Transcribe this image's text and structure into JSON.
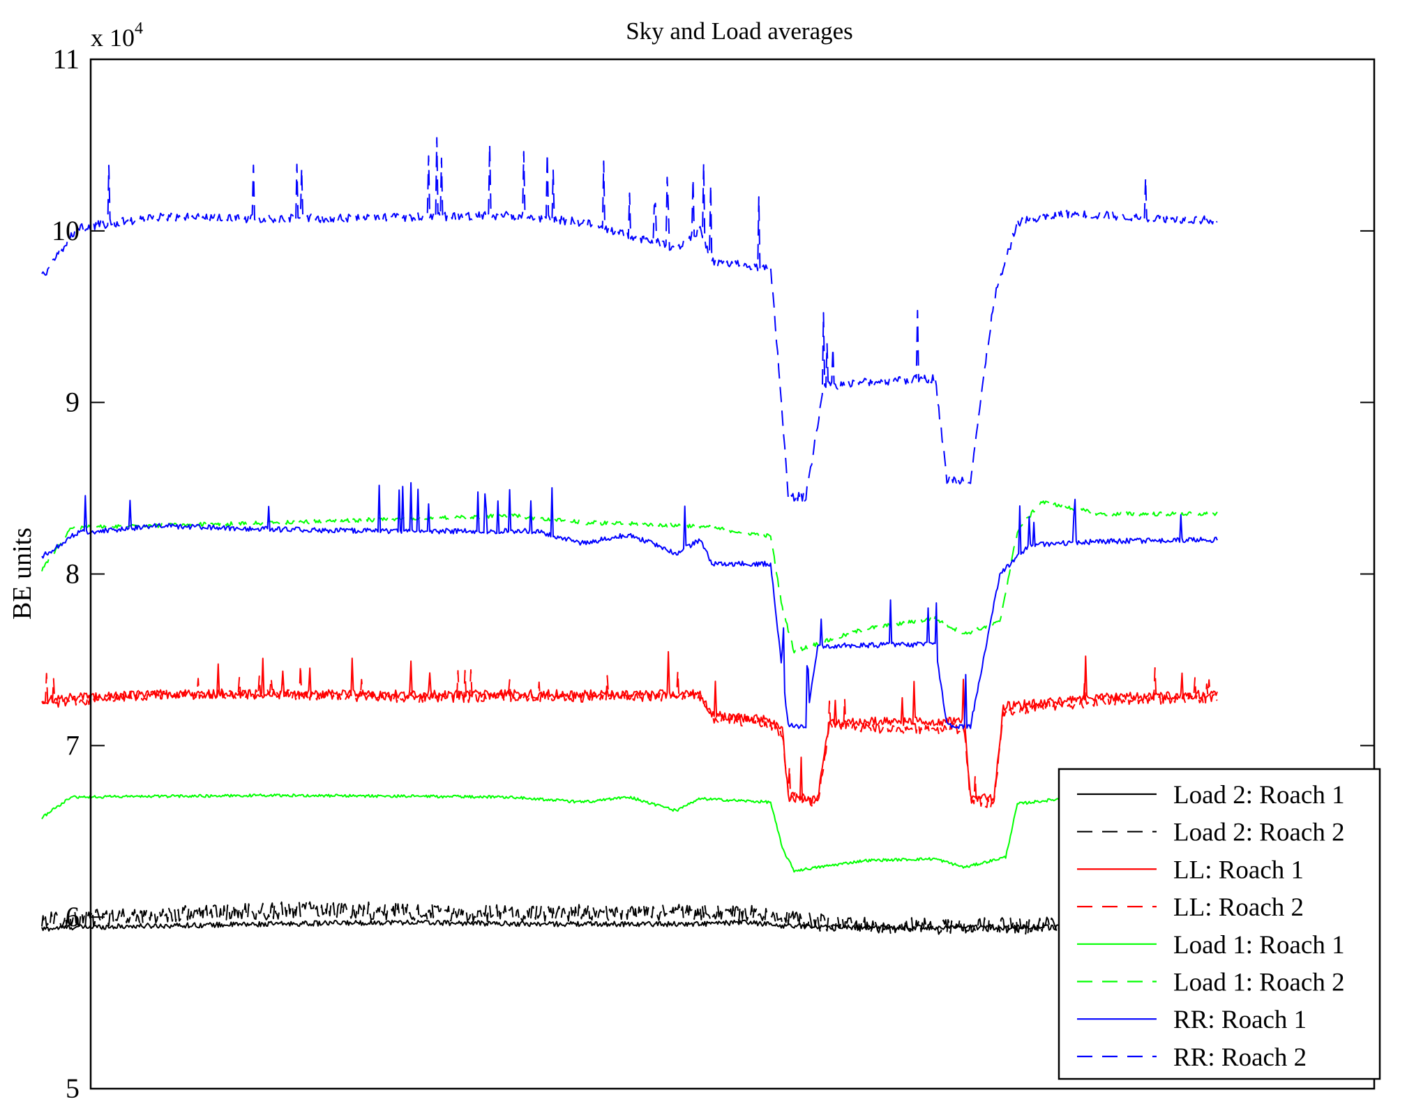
{
  "chart_data": {
    "type": "line",
    "title": "Sky and Load averages",
    "xlabel": "",
    "ylabel": "BE units",
    "y_multiplier": "x 10",
    "y_multiplier_exponent": "4",
    "ylim": [
      50000,
      110000
    ],
    "xlim": [
      0,
      1000
    ],
    "y_ticks": [
      50000,
      60000,
      70000,
      80000,
      90000,
      100000,
      110000
    ],
    "y_tick_labels": [
      "5",
      "6",
      "7",
      "8",
      "9",
      "10",
      "11"
    ],
    "x_tick_labels": [],
    "grid": false,
    "legend_position": "bottom-right",
    "series": [
      {
        "name": "Load 2: Roach 1",
        "color": "#000000",
        "dash": "solid",
        "noise": 150,
        "spike": 0,
        "points": [
          [
            0,
            59300
          ],
          [
            20,
            59400
          ],
          [
            100,
            59500
          ],
          [
            200,
            59600
          ],
          [
            300,
            59700
          ],
          [
            420,
            59600
          ],
          [
            560,
            59600
          ],
          [
            600,
            59700
          ],
          [
            630,
            59500
          ],
          [
            700,
            59400
          ],
          [
            800,
            59400
          ],
          [
            900,
            59400
          ],
          [
            1000,
            59400
          ]
        ]
      },
      {
        "name": "Load 2: Roach 2",
        "color": "#000000",
        "dash": "dashed",
        "noise": 500,
        "spike": 0,
        "points": [
          [
            0,
            59800
          ],
          [
            60,
            60000
          ],
          [
            120,
            60200
          ],
          [
            180,
            60300
          ],
          [
            240,
            60500
          ],
          [
            300,
            60300
          ],
          [
            400,
            60200
          ],
          [
            500,
            60300
          ],
          [
            560,
            60300
          ],
          [
            600,
            60200
          ],
          [
            630,
            60000
          ],
          [
            660,
            59700
          ],
          [
            700,
            59500
          ],
          [
            800,
            59500
          ],
          [
            900,
            59500
          ],
          [
            1000,
            59500
          ]
        ]
      },
      {
        "name": "LL: Roach 1",
        "color": "#ff0000",
        "dash": "solid",
        "noise": 250,
        "spike": 2000,
        "points": [
          [
            0,
            72600
          ],
          [
            25,
            72800
          ],
          [
            100,
            73000
          ],
          [
            200,
            73000
          ],
          [
            300,
            73000
          ],
          [
            400,
            73000
          ],
          [
            560,
            73000
          ],
          [
            570,
            71800
          ],
          [
            615,
            71500
          ],
          [
            620,
            71300
          ],
          [
            630,
            71000
          ],
          [
            635,
            67000
          ],
          [
            660,
            66800
          ],
          [
            670,
            71400
          ],
          [
            700,
            71400
          ],
          [
            760,
            71400
          ],
          [
            785,
            71400
          ],
          [
            790,
            67000
          ],
          [
            810,
            66900
          ],
          [
            818,
            72300
          ],
          [
            900,
            72800
          ],
          [
            1000,
            73000
          ]
        ]
      },
      {
        "name": "LL: Roach 2",
        "color": "#ff0000",
        "dash": "dashed",
        "noise": 300,
        "spike": 1500,
        "points": [
          [
            0,
            72400
          ],
          [
            25,
            72600
          ],
          [
            100,
            73000
          ],
          [
            200,
            73000
          ],
          [
            300,
            72800
          ],
          [
            400,
            72800
          ],
          [
            560,
            72900
          ],
          [
            570,
            71600
          ],
          [
            615,
            71300
          ],
          [
            620,
            71100
          ],
          [
            630,
            70800
          ],
          [
            635,
            67200
          ],
          [
            660,
            66600
          ],
          [
            670,
            71200
          ],
          [
            700,
            71000
          ],
          [
            760,
            71000
          ],
          [
            785,
            71000
          ],
          [
            790,
            66800
          ],
          [
            810,
            66600
          ],
          [
            818,
            72000
          ],
          [
            900,
            72600
          ],
          [
            1000,
            72800
          ]
        ]
      },
      {
        "name": "Load 1: Roach 1",
        "color": "#00ff00",
        "dash": "solid",
        "noise": 80,
        "spike": 0,
        "points": [
          [
            0,
            65800
          ],
          [
            25,
            67000
          ],
          [
            200,
            67100
          ],
          [
            400,
            67000
          ],
          [
            460,
            66700
          ],
          [
            500,
            67000
          ],
          [
            540,
            66200
          ],
          [
            560,
            66900
          ],
          [
            620,
            66700
          ],
          [
            630,
            64000
          ],
          [
            640,
            62700
          ],
          [
            700,
            63300
          ],
          [
            760,
            63400
          ],
          [
            785,
            62900
          ],
          [
            820,
            63500
          ],
          [
            830,
            66600
          ],
          [
            880,
            67000
          ],
          [
            1000,
            67000
          ]
        ]
      },
      {
        "name": "Load 1: Roach 2",
        "color": "#00ff00",
        "dash": "dashed",
        "noise": 120,
        "spike": 0,
        "points": [
          [
            0,
            80200
          ],
          [
            25,
            82700
          ],
          [
            200,
            83000
          ],
          [
            300,
            83200
          ],
          [
            400,
            83400
          ],
          [
            460,
            83000
          ],
          [
            560,
            82800
          ],
          [
            620,
            82200
          ],
          [
            630,
            78000
          ],
          [
            640,
            75500
          ],
          [
            700,
            76800
          ],
          [
            760,
            77400
          ],
          [
            785,
            76500
          ],
          [
            815,
            77200
          ],
          [
            830,
            82500
          ],
          [
            850,
            84200
          ],
          [
            900,
            83500
          ],
          [
            1000,
            83500
          ]
        ]
      },
      {
        "name": "RR: Roach 1",
        "color": "#0000ff",
        "dash": "solid",
        "noise": 150,
        "spike": 2500,
        "points": [
          [
            0,
            81000
          ],
          [
            30,
            82400
          ],
          [
            100,
            82800
          ],
          [
            200,
            82600
          ],
          [
            300,
            82500
          ],
          [
            420,
            82500
          ],
          [
            460,
            81800
          ],
          [
            500,
            82300
          ],
          [
            540,
            81200
          ],
          [
            560,
            82000
          ],
          [
            570,
            80600
          ],
          [
            620,
            80600
          ],
          [
            635,
            71200
          ],
          [
            650,
            71100
          ],
          [
            660,
            75800
          ],
          [
            760,
            75900
          ],
          [
            770,
            71200
          ],
          [
            790,
            71100
          ],
          [
            815,
            80000
          ],
          [
            840,
            81700
          ],
          [
            900,
            81900
          ],
          [
            1000,
            82000
          ]
        ]
      },
      {
        "name": "RR: Roach 2",
        "color": "#0000ff",
        "dash": "dashed",
        "noise": 250,
        "spike": 3500,
        "points": [
          [
            0,
            97300
          ],
          [
            30,
            100200
          ],
          [
            100,
            100800
          ],
          [
            200,
            100700
          ],
          [
            300,
            100800
          ],
          [
            400,
            100900
          ],
          [
            460,
            100500
          ],
          [
            540,
            99000
          ],
          [
            560,
            100100
          ],
          [
            570,
            98200
          ],
          [
            620,
            97800
          ],
          [
            627,
            92000
          ],
          [
            635,
            84500
          ],
          [
            650,
            84500
          ],
          [
            665,
            90900
          ],
          [
            700,
            91200
          ],
          [
            760,
            91400
          ],
          [
            770,
            85500
          ],
          [
            790,
            85500
          ],
          [
            810,
            96000
          ],
          [
            830,
            100500
          ],
          [
            870,
            101000
          ],
          [
            1000,
            100600
          ]
        ]
      }
    ]
  }
}
